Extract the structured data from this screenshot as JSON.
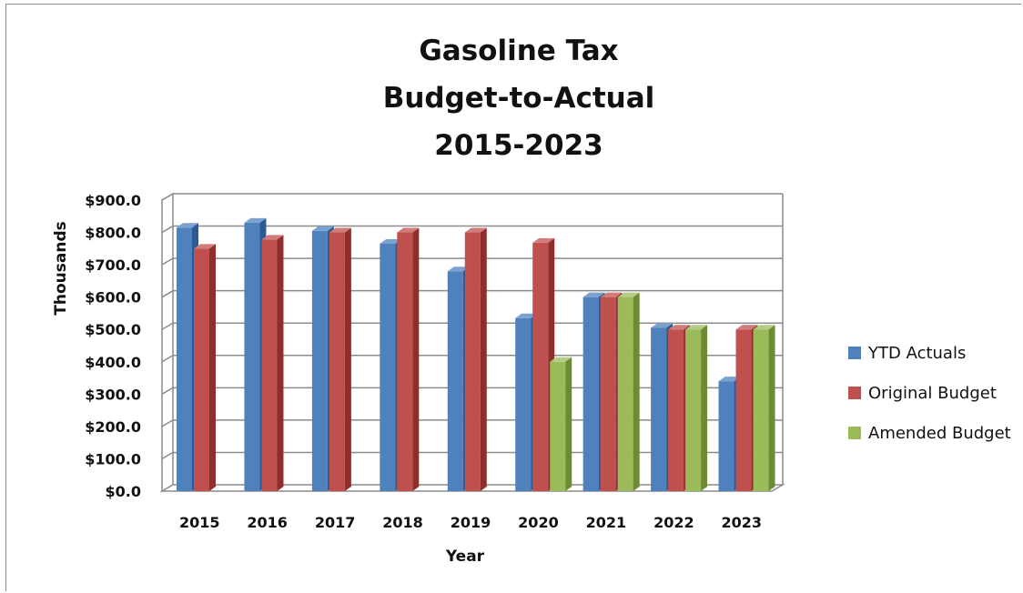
{
  "chart_data": {
    "type": "bar",
    "title": [
      "Gasoline Tax",
      "Budget-to-Actual",
      "2015-2023"
    ],
    "xlabel": "Year",
    "ylabel": "Thousands",
    "ylim": [
      0,
      900
    ],
    "yticks": [
      "$0.0",
      "$100.0",
      "$200.0",
      "$300.0",
      "$400.0",
      "$500.0",
      "$600.0",
      "$700.0",
      "$800.0",
      "$900.0"
    ],
    "grid": true,
    "legend_position": "right",
    "categories": [
      "2015",
      "2016",
      "2017",
      "2018",
      "2019",
      "2020",
      "2021",
      "2022",
      "2023"
    ],
    "series": [
      {
        "name": "YTD Actuals",
        "color": "#4f81bd",
        "shade": "#2c5a93",
        "values": [
          815,
          830,
          805,
          765,
          680,
          535,
          600,
          505,
          340
        ]
      },
      {
        "name": "Original Budget",
        "color": "#c0504d",
        "shade": "#8f2e2b",
        "values": [
          750,
          778,
          800,
          800,
          800,
          768,
          600,
          500,
          500
        ]
      },
      {
        "name": "Amended Budget",
        "color": "#9bbb59",
        "shade": "#6d8a35",
        "values": [
          null,
          null,
          null,
          null,
          null,
          400,
          600,
          500,
          500
        ]
      }
    ]
  }
}
